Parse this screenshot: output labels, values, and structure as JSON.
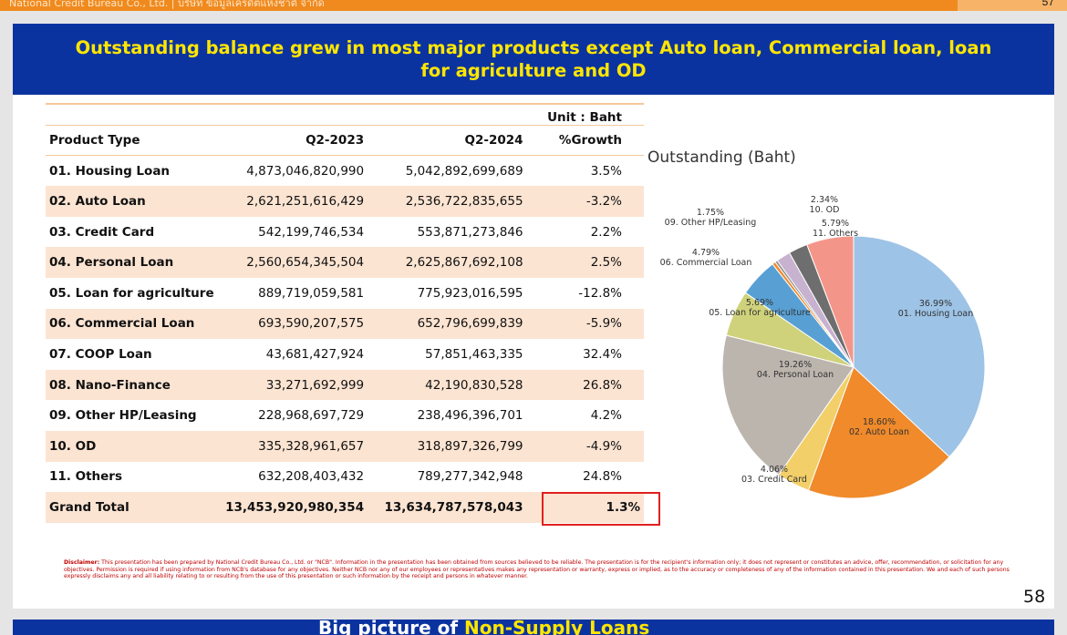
{
  "header": {
    "company": "National Credit Bureau Co., Ltd. | บริษัท ข้อมูลเครดิตแห่งชาติ จำกัด",
    "page": "57"
  },
  "slide": {
    "title": "Outstanding balance grew in most major products except Auto loan, Commercial loan, loan for agriculture and OD",
    "unit": "Unit : Baht",
    "columns": [
      "Product Type",
      "Q2-2023",
      "Q2-2024",
      "%Growth"
    ],
    "rows": [
      {
        "product": "01. Housing Loan",
        "q2_2023": "4,873,046,820,990",
        "q2_2024": "5,042,892,699,689",
        "growth": "3.5%"
      },
      {
        "product": "02. Auto Loan",
        "q2_2023": "2,621,251,616,429",
        "q2_2024": "2,536,722,835,655",
        "growth": "-3.2%"
      },
      {
        "product": "03. Credit Card",
        "q2_2023": "542,199,746,534",
        "q2_2024": "553,871,273,846",
        "growth": "2.2%"
      },
      {
        "product": "04. Personal Loan",
        "q2_2023": "2,560,654,345,504",
        "q2_2024": "2,625,867,692,108",
        "growth": "2.5%"
      },
      {
        "product": "05. Loan for agriculture",
        "q2_2023": "889,719,059,581",
        "q2_2024": "775,923,016,595",
        "growth": "-12.8%"
      },
      {
        "product": "06. Commercial Loan",
        "q2_2023": "693,590,207,575",
        "q2_2024": "652,796,699,839",
        "growth": "-5.9%"
      },
      {
        "product": "07. COOP Loan",
        "q2_2023": "43,681,427,924",
        "q2_2024": "57,851,463,335",
        "growth": "32.4%"
      },
      {
        "product": "08. Nano-Finance",
        "q2_2023": "33,271,692,999",
        "q2_2024": "42,190,830,528",
        "growth": "26.8%"
      },
      {
        "product": "09. Other HP/Leasing",
        "q2_2023": "228,968,697,729",
        "q2_2024": "238,496,396,701",
        "growth": "4.2%"
      },
      {
        "product": "10. OD",
        "q2_2023": "335,328,961,657",
        "q2_2024": "318,897,326,799",
        "growth": "-4.9%"
      },
      {
        "product": "11. Others",
        "q2_2023": "632,208,403,432",
        "q2_2024": "789,277,342,948",
        "growth": "24.8%"
      }
    ],
    "total": {
      "product": "Grand Total",
      "q2_2023": "13,453,920,980,354",
      "q2_2024": "13,634,787,578,043",
      "growth": "1.3%"
    },
    "disclaimer_label": "Disclaimer:",
    "disclaimer_text": "This presentation has been prepared by National Credit Bureau Co., Ltd. or \"NCB\". Information in the presentation has been obtained from sources believed to be reliable. The presentation is for the recipient's information only; it does not represent or constitutes an advice, offer, recommendation, or solicitation for any objectives. Permission is required if using information from NCB's database for any objectives. Neither NCB nor any of our employees or representatives makes any representation or warranty, express or implied, as to the accuracy or completeness of any of the information contained in this presentation. We and each of such persons expressly disclaims any and all liability relating to or resulting from the use of this presentation or such information by the receipt and persons in whatever manner.",
    "page_number": "58"
  },
  "chart_data": {
    "type": "pie",
    "title": "Outstanding (Baht)",
    "slices": [
      {
        "label": "01. Housing Loan",
        "pct": "36.99%",
        "value": 36.99,
        "color": "#9dc3e6"
      },
      {
        "label": "02. Auto Loan",
        "pct": "18.60%",
        "value": 18.6,
        "color": "#f08a2a"
      },
      {
        "label": "03. Credit Card",
        "pct": "4.06%",
        "value": 4.06,
        "color": "#f2cf68"
      },
      {
        "label": "04. Personal Loan",
        "pct": "19.26%",
        "value": 19.26,
        "color": "#bcb5ae"
      },
      {
        "label": "05. Loan for agriculture",
        "pct": "5.69%",
        "value": 5.69,
        "color": "#cfd27a"
      },
      {
        "label": "06. Commercial Loan",
        "pct": "4.79%",
        "value": 4.79,
        "color": "#58a0d4"
      },
      {
        "label": "07. COOP Loan",
        "pct": "",
        "value": 0.42,
        "color": "#f28a2a"
      },
      {
        "label": "08. Nano-Finance",
        "pct": "",
        "value": 0.31,
        "color": "#8a8a8a"
      },
      {
        "label": "09. Other HP/Leasing",
        "pct": "1.75%",
        "value": 1.75,
        "color": "#c7b2cf"
      },
      {
        "label": "10. OD",
        "pct": "2.34%",
        "value": 2.34,
        "color": "#6e6e6e"
      },
      {
        "label": "11. Others",
        "pct": "5.79%",
        "value": 5.79,
        "color": "#f4958a"
      }
    ]
  },
  "next_slide": {
    "title_part1": "Big picture of ",
    "title_part2": "Non-Supply Loans"
  }
}
